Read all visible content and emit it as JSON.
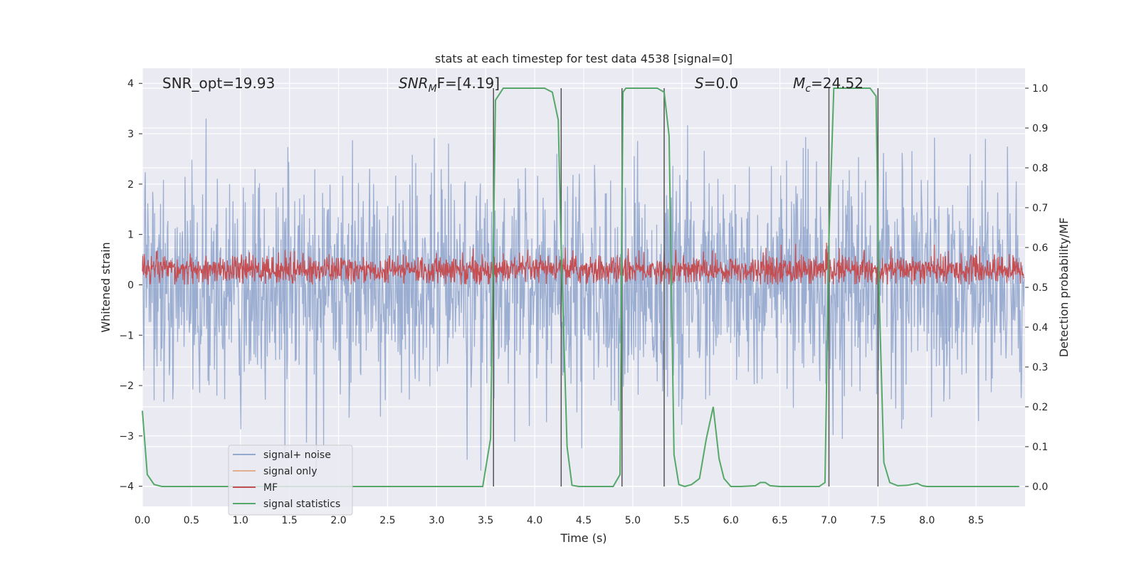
{
  "chart_data": {
    "type": "line",
    "title": "stats at each timestep for test data 4538 [signal=0]",
    "xlabel": "Time (s)",
    "ylabel_left": "Whitened strain",
    "ylabel_right": "Detection probability/MF",
    "xlim": [
      0.0,
      9.0
    ],
    "ylim_left": [
      -4.4,
      4.3
    ],
    "ylim_right": [
      -0.05,
      1.05
    ],
    "x_ticks": [
      "0.0",
      "0.5",
      "1.0",
      "1.5",
      "2.0",
      "2.5",
      "3.0",
      "3.5",
      "4.0",
      "4.5",
      "5.0",
      "5.5",
      "6.0",
      "6.5",
      "7.0",
      "7.5",
      "8.0",
      "8.5"
    ],
    "y_ticks_left": [
      "4",
      "3",
      "2",
      "1",
      "0",
      "−1",
      "−2",
      "−3",
      "−4"
    ],
    "y_ticks_right": [
      "1.0",
      "0.9",
      "0.8",
      "0.7",
      "0.6",
      "0.5",
      "0.4",
      "0.3",
      "0.2",
      "0.1",
      "0.0"
    ],
    "grid": true,
    "legend_position": "lower-left",
    "annotations": {
      "snr_opt": "SNR_opt=19.93",
      "snr_mf_name": "SNR",
      "snr_mf_sub": "M",
      "snr_mf_rest": "F=[4.19]",
      "s_name": "S",
      "s_rest": "=0.0",
      "mc_name": "M",
      "mc_sub": "c",
      "mc_rest": "=24.52"
    },
    "series": [
      {
        "name": "signal+ noise",
        "color": "#4c72b0",
        "axis": "left",
        "note": "white noise, amplitude about ±2.5, peaks near ±4"
      },
      {
        "name": "signal only",
        "color": "#dd8452",
        "axis": "left",
        "values": []
      },
      {
        "name": "MF",
        "color": "#c44e52",
        "axis": "left",
        "note": "noisy band between about 0.0 and 0.7"
      },
      {
        "name": "signal statistics",
        "color": "#55a868",
        "axis": "right",
        "x": [
          0.0,
          0.05,
          0.12,
          0.2,
          0.3,
          0.5,
          1.0,
          2.0,
          3.0,
          3.47,
          3.55,
          3.6,
          3.68,
          3.75,
          3.85,
          4.0,
          4.1,
          4.18,
          4.24,
          4.27,
          4.33,
          4.38,
          4.45,
          4.6,
          4.8,
          4.87,
          4.9,
          4.93,
          5.0,
          5.1,
          5.25,
          5.32,
          5.37,
          5.42,
          5.47,
          5.53,
          5.6,
          5.68,
          5.75,
          5.82,
          5.88,
          5.93,
          6.0,
          6.1,
          6.25,
          6.3,
          6.35,
          6.4,
          6.5,
          6.7,
          6.9,
          6.96,
          7.0,
          7.05,
          7.08,
          7.15,
          7.3,
          7.42,
          7.48,
          7.51,
          7.56,
          7.62,
          7.7,
          7.8,
          7.9,
          7.95,
          8.0,
          8.2,
          8.5,
          8.94
        ],
        "values": [
          0.19,
          0.03,
          0.005,
          0.0,
          0.0,
          0.0,
          0.0,
          0.0,
          0.0,
          0.0,
          0.12,
          0.97,
          1.0,
          1.0,
          1.0,
          1.0,
          1.0,
          0.99,
          0.92,
          0.6,
          0.1,
          0.003,
          0.0,
          0.0,
          0.0,
          0.03,
          0.99,
          1.0,
          1.0,
          1.0,
          1.0,
          0.99,
          0.88,
          0.08,
          0.005,
          0.0,
          0.005,
          0.02,
          0.12,
          0.2,
          0.07,
          0.02,
          0.0,
          0.0,
          0.002,
          0.01,
          0.01,
          0.002,
          0.0,
          0.0,
          0.0,
          0.01,
          0.62,
          1.0,
          1.0,
          1.0,
          1.0,
          1.0,
          0.98,
          0.5,
          0.06,
          0.01,
          0.002,
          0.003,
          0.008,
          0.002,
          0.0,
          0.0,
          0.0,
          0.0
        ]
      }
    ],
    "vertical_markers": [
      3.58,
      4.27,
      4.89,
      5.32,
      7.0,
      7.5
    ]
  }
}
